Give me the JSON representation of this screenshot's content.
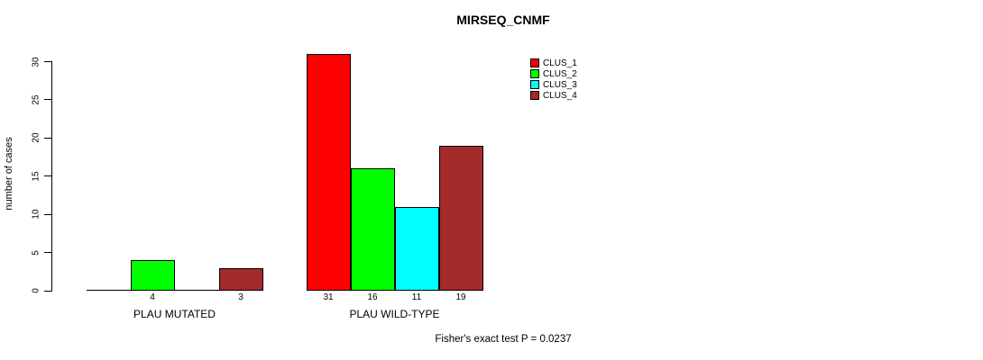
{
  "title": "MIRSEQ_CNMF",
  "y_axis_label": "number of cases",
  "footer_note": "Fisher's exact test P = 0.0237",
  "legend": {
    "position": "top-right",
    "entries": [
      {
        "label": "CLUS_1",
        "color": "#FF0000"
      },
      {
        "label": "CLUS_2",
        "color": "#00FF00"
      },
      {
        "label": "CLUS_3",
        "color": "#00FFFF"
      },
      {
        "label": "CLUS_4",
        "color": "#A52A2A"
      }
    ]
  },
  "chart_data": {
    "type": "bar",
    "title": "MIRSEQ_CNMF",
    "xlabel": "",
    "ylabel": "number of cases",
    "ylim": [
      0,
      30
    ],
    "yticks": [
      0,
      5,
      10,
      15,
      20,
      25,
      30
    ],
    "grid": false,
    "legend_position": "top-right",
    "categories": [
      "PLAU MUTATED",
      "PLAU WILD-TYPE"
    ],
    "series": [
      {
        "name": "CLUS_1",
        "color": "#FF0000",
        "values": [
          0,
          31
        ]
      },
      {
        "name": "CLUS_2",
        "color": "#00FF00",
        "values": [
          4,
          16
        ]
      },
      {
        "name": "CLUS_3",
        "color": "#00FFFF",
        "values": [
          0,
          11
        ]
      },
      {
        "name": "CLUS_4",
        "color": "#A52A2A",
        "values": [
          3,
          19
        ]
      }
    ],
    "bar_value_labels": [
      [
        "",
        "4",
        "",
        "3"
      ],
      [
        "31",
        "16",
        "11",
        "19"
      ]
    ],
    "annotation": "Fisher's exact test P = 0.0237"
  }
}
